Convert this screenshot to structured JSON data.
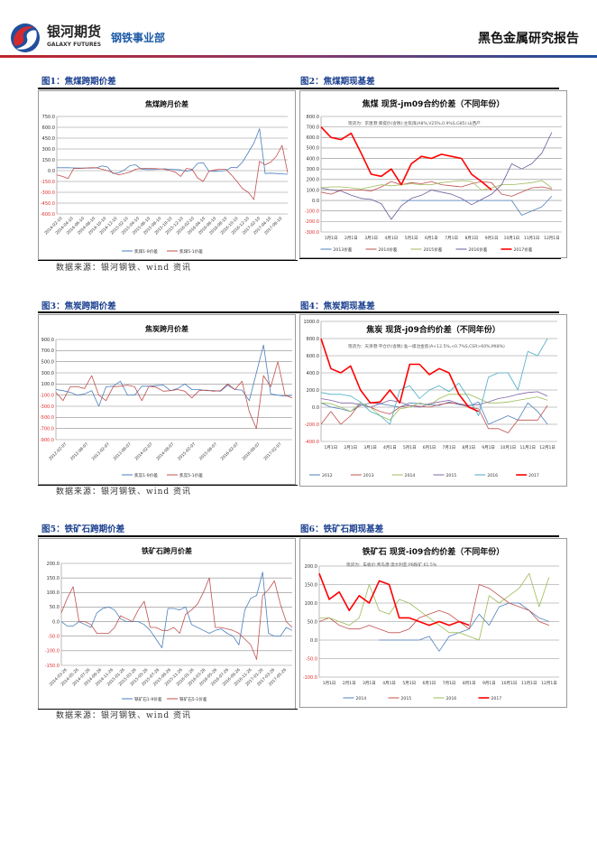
{
  "header": {
    "brand_cn": "银河期货",
    "brand_en": "GALAXY FUTURES",
    "department": "钢铁事业部",
    "report_type": "黑色金属研究报告"
  },
  "figures": [
    {
      "label": "图1：焦煤跨期价差",
      "source": "数据来源：银河钢铁、wind 资讯"
    },
    {
      "label": "图2：焦煤期现基差"
    },
    {
      "label": "图3：焦炭跨期价差",
      "source": "数据来源：银河钢铁、wind 资讯"
    },
    {
      "label": "图4：焦炭期现基差"
    },
    {
      "label": "图5：铁矿石跨期价差",
      "source": "数据来源：银河钢铁、wind 资讯"
    },
    {
      "label": "图6：铁矿石期现基差"
    }
  ],
  "chart_data": [
    {
      "type": "line",
      "title": "焦煤跨月价差",
      "ylim": [
        -600,
        750
      ],
      "ystep": 150,
      "grid": true,
      "legend": "bottom",
      "x_ticks": [
        "2014-02-10",
        "2014-04-10",
        "2014-06-10",
        "2014-08-10",
        "2014-10-10",
        "2014-12-10",
        "2015-02-10",
        "2015-04-10",
        "2015-06-10",
        "2015-08-10",
        "2015-10-10",
        "2015-12-10",
        "2016-02-10",
        "2016-04-10",
        "2016-06-10",
        "2016-08-10",
        "2016-10-10",
        "2016-12-10",
        "2017-02-10",
        "2017-04-10",
        "2017-06-10"
      ],
      "series": [
        {
          "name": "焦煤1-9价差",
          "color": "#4a7ebb",
          "values": [
            40,
            40,
            40,
            38,
            35,
            35,
            35,
            38,
            65,
            50,
            -40,
            -30,
            10,
            70,
            80,
            20,
            15,
            15,
            20,
            25,
            20,
            15,
            10,
            -10,
            10,
            100,
            110,
            -5,
            -10,
            -5,
            0,
            45,
            40,
            120,
            250,
            380,
            580,
            -40,
            -35,
            -40,
            -45,
            -50
          ]
        },
        {
          "name": "焦煤5-1价差",
          "color": "#c0504d",
          "values": [
            -60,
            -80,
            -110,
            30,
            30,
            35,
            40,
            40,
            20,
            0,
            -30,
            -60,
            -40,
            -20,
            20,
            30,
            30,
            30,
            25,
            20,
            5,
            -20,
            -80,
            30,
            20,
            -100,
            -150,
            -10,
            10,
            20,
            20,
            -60,
            -150,
            -250,
            -300,
            -400,
            130,
            80,
            120,
            200,
            350,
            -30
          ]
        }
      ]
    },
    {
      "type": "line",
      "title": "焦煤  现货-jm09合约价差（不同年份）",
      "subtitle": "现货为：京唐港:库提价(含税):主焦煤(A8%,V25%,0.9%S,G85):山西产",
      "ylim": [
        -300,
        800
      ],
      "ystep": 100,
      "grid": true,
      "legend": "bottom",
      "x_ticks": [
        "1月1日",
        "2月1日",
        "3月1日",
        "4月1日",
        "5月1日",
        "6月1日",
        "7月1日",
        "8月1日",
        "9月1日",
        "10月1日",
        "11月1日",
        "12月1日"
      ],
      "series": [
        {
          "name": "2013价差",
          "color": "#4f81bd",
          "values": [
            null,
            null,
            null,
            null,
            null,
            null,
            null,
            null,
            0,
            0,
            0,
            0,
            0,
            0,
            0,
            0,
            0,
            0,
            0,
            0,
            -140,
            -100,
            -60,
            40
          ]
        },
        {
          "name": "2014价差",
          "color": "#c0504d",
          "values": [
            80,
            60,
            100,
            100,
            100,
            90,
            130,
            180,
            150,
            170,
            160,
            180,
            150,
            140,
            130,
            160,
            180,
            170,
            60,
            40,
            80,
            120,
            130,
            110
          ]
        },
        {
          "name": "2015价差",
          "color": "#9bbb59",
          "values": [
            120,
            130,
            130,
            120,
            110,
            130,
            150,
            140,
            150,
            160,
            150,
            150,
            170,
            180,
            190,
            180,
            100,
            120,
            150,
            150,
            160,
            170,
            190,
            120
          ]
        },
        {
          "name": "2016价差",
          "color": "#6a5a9a",
          "values": [
            120,
            100,
            90,
            50,
            20,
            10,
            -30,
            -180,
            -50,
            20,
            50,
            100,
            80,
            60,
            20,
            -40,
            10,
            60,
            150,
            350,
            300,
            350,
            450,
            650
          ]
        },
        {
          "name": "2017价差",
          "color": "#ff0000",
          "bold": true,
          "values": [
            700,
            600,
            580,
            640,
            450,
            250,
            230,
            300,
            150,
            350,
            420,
            400,
            440,
            420,
            400,
            250,
            180,
            100,
            null,
            null,
            null,
            null,
            null,
            null
          ]
        }
      ]
    },
    {
      "type": "line",
      "title": "焦炭跨月价差",
      "ylim": [
        -900,
        900
      ],
      "ystep": 200,
      "grid": true,
      "legend": "bottom",
      "x_ticks": [
        "2012-02-07",
        "2012-08-07",
        "2013-02-07",
        "2013-08-07",
        "2014-02-07",
        "2014-08-07",
        "2015-02-07",
        "2015-08-07",
        "2016-02-07",
        "2016-08-07",
        "2017-02-07"
      ],
      "series": [
        {
          "name": "焦炭1-9价差",
          "color": "#4a7ebb",
          "values": [
            0,
            -20,
            -50,
            -100,
            -80,
            -20,
            -300,
            50,
            60,
            150,
            -100,
            -100,
            60,
            60,
            70,
            80,
            -20,
            20,
            100,
            0,
            0,
            -20,
            -20,
            -30,
            80,
            0,
            -10,
            -200,
            300,
            800,
            -80,
            -100,
            -120,
            -100
          ]
        },
        {
          "name": "焦炭5-1价差",
          "color": "#c0504d",
          "values": [
            -50,
            -200,
            50,
            50,
            20,
            250,
            -100,
            -200,
            50,
            60,
            80,
            50,
            -200,
            60,
            40,
            -30,
            -20,
            0,
            -30,
            -150,
            -20,
            -10,
            -30,
            -20,
            100,
            0,
            150,
            -400,
            -700,
            250,
            50,
            500,
            -100,
            -150
          ]
        }
      ]
    },
    {
      "type": "line",
      "title": "焦炭  现货-j09合约价差（不同年份）",
      "subtitle": "现货为：天津港:平仓价(含税):准一级冶金焦(A<12.5%,<0.7%S,CSR>60%,Mt8%)",
      "ylim": [
        -400,
        1000
      ],
      "ystep": 200,
      "grid": true,
      "legend": "bottom",
      "x_ticks": [
        "1月1日",
        "2月1日",
        "3月1日",
        "4月1日",
        "5月1日",
        "6月1日",
        "7月1日",
        "8月1日",
        "9月1日",
        "10月1日",
        "11月1日",
        "12月1日"
      ],
      "series": [
        {
          "name": "2012",
          "color": "#4f81bd",
          "values": [
            50,
            0,
            -20,
            -50,
            20,
            50,
            40,
            20,
            0,
            50,
            40,
            30,
            20,
            60,
            30,
            10,
            60,
            -200,
            -150,
            -100,
            -150,
            50,
            -50,
            -200
          ]
        },
        {
          "name": "2013",
          "color": "#c0504d",
          "values": [
            -200,
            -50,
            -200,
            -100,
            50,
            0,
            -50,
            -80,
            0,
            20,
            10,
            0,
            30,
            50,
            40,
            0,
            -20,
            -250,
            -250,
            -300,
            -150,
            -150,
            -150,
            20
          ]
        },
        {
          "name": "2014",
          "color": "#9bbb59",
          "values": [
            50,
            40,
            0,
            -50,
            50,
            0,
            -100,
            -150,
            -20,
            0,
            50,
            20,
            100,
            150,
            150,
            150,
            100,
            50,
            50,
            60,
            80,
            100,
            120,
            80
          ]
        },
        {
          "name": "2015",
          "color": "#8064a2",
          "values": [
            100,
            80,
            50,
            50,
            30,
            0,
            40,
            80,
            60,
            20,
            0,
            40,
            60,
            80,
            40,
            20,
            30,
            60,
            100,
            120,
            150,
            170,
            180,
            130
          ]
        },
        {
          "name": "2016",
          "color": "#4bacc6",
          "values": [
            170,
            150,
            150,
            130,
            60,
            -50,
            -100,
            -200,
            200,
            250,
            100,
            200,
            250,
            180,
            280,
            100,
            -100,
            350,
            400,
            400,
            200,
            650,
            600,
            800
          ]
        },
        {
          "name": "2017",
          "color": "#ff0000",
          "bold": true,
          "values": [
            800,
            450,
            400,
            480,
            200,
            50,
            60,
            200,
            50,
            500,
            500,
            380,
            450,
            400,
            150,
            0,
            -50,
            null,
            null,
            null,
            null,
            null,
            null,
            null
          ]
        }
      ]
    },
    {
      "type": "line",
      "title": "铁矿石跨月价差",
      "ylim": [
        -150,
        200
      ],
      "ystep": 50,
      "grid": true,
      "legend": "bottom",
      "x_ticks": [
        "2014-03-26",
        "2014-05-26",
        "2014-07-26",
        "2014-09-26",
        "2014-11-26",
        "2015-01-26",
        "2015-03-26",
        "2015-05-26",
        "2015-07-26",
        "2015-09-26",
        "2015-11-26",
        "2016-01-26",
        "2016-03-26",
        "2016-05-26",
        "2016-07-26",
        "2016-09-26",
        "2016-11-26",
        "2017-01-26",
        "2017-03-26",
        "2017-05-26"
      ],
      "series": [
        {
          "name": "铁矿石1-9价差",
          "color": "#4a7ebb",
          "values": [
            0,
            -15,
            -15,
            0,
            -10,
            -20,
            30,
            45,
            50,
            40,
            10,
            0,
            0,
            0,
            -10,
            -30,
            -60,
            -90,
            45,
            45,
            40,
            50,
            -10,
            -20,
            -30,
            -40,
            -30,
            -25,
            -40,
            -50,
            -80,
            40,
            80,
            90,
            170,
            -40,
            -50,
            -50,
            -20,
            -30
          ]
        },
        {
          "name": "铁矿石5-1价差",
          "color": "#c0504d",
          "values": [
            30,
            80,
            120,
            0,
            0,
            -10,
            -40,
            -40,
            -40,
            -20,
            20,
            10,
            0,
            40,
            70,
            -20,
            -20,
            -30,
            -30,
            -20,
            -40,
            25,
            40,
            60,
            100,
            150,
            -20,
            -20,
            -25,
            -30,
            -40,
            -60,
            -80,
            -130,
            90,
            110,
            140,
            60,
            0,
            -20
          ]
        }
      ]
    },
    {
      "type": "line",
      "title": "铁矿石  现货-i09合约价差（不同年份）",
      "subtitle": "现货为：车板价:青岛港:澳大利亚:PB粉矿:61.5%",
      "ylim": [
        -100,
        200
      ],
      "ystep": 50,
      "grid": true,
      "legend": "bottom",
      "x_ticks": [
        "1月1日",
        "2月1日",
        "3月1日",
        "4月1日",
        "5月1日",
        "6月1日",
        "7月1日",
        "8月1日",
        "9月1日",
        "10月1日",
        "11月1日",
        "12月1日"
      ],
      "series": [
        {
          "name": "2014",
          "color": "#4f81bd",
          "values": [
            null,
            null,
            null,
            null,
            null,
            null,
            0,
            0,
            0,
            0,
            0,
            10,
            -30,
            10,
            20,
            30,
            70,
            40,
            90,
            100,
            100,
            80,
            60,
            50
          ]
        },
        {
          "name": "2015",
          "color": "#c0504d",
          "values": [
            50,
            60,
            40,
            30,
            30,
            40,
            30,
            20,
            20,
            30,
            60,
            70,
            80,
            70,
            50,
            30,
            150,
            140,
            120,
            100,
            90,
            80,
            50,
            40
          ]
        },
        {
          "name": "2016",
          "color": "#9bbb59",
          "values": [
            60,
            60,
            50,
            40,
            60,
            150,
            80,
            70,
            110,
            100,
            80,
            60,
            40,
            20,
            20,
            10,
            0,
            120,
            100,
            120,
            140,
            180,
            90,
            170
          ]
        },
        {
          "name": "2017",
          "color": "#ff0000",
          "bold": true,
          "values": [
            180,
            110,
            130,
            80,
            120,
            100,
            160,
            150,
            60,
            60,
            50,
            40,
            50,
            40,
            50,
            40,
            null,
            null,
            null,
            null,
            null,
            null,
            null,
            null
          ]
        }
      ]
    }
  ]
}
